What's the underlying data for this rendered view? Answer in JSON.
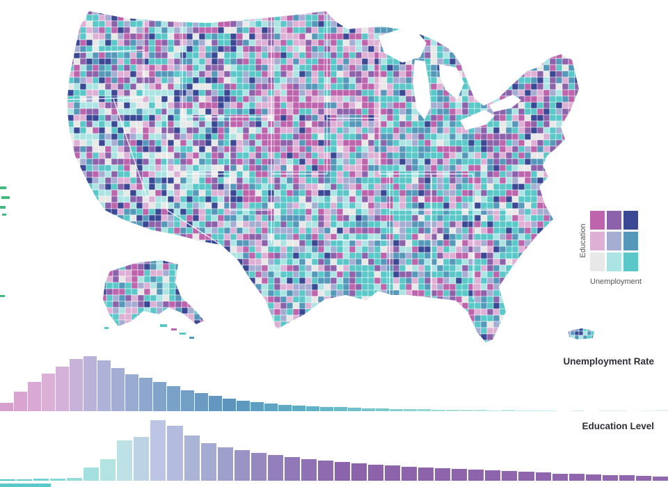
{
  "page": {
    "background": "#ffffff",
    "description": "Linked bivariate choropleth dashboard: U.S. counties by Education and Unemployment with two histograms"
  },
  "map": {
    "title": "U.S. counties bivariate choropleth (Education x Unemployment)",
    "palette": {
      "grid": [
        [
          "#be64ac",
          "#8c62aa",
          "#3b4994"
        ],
        [
          "#dfb0d6",
          "#a5add3",
          "#5698b9"
        ],
        [
          "#e8e8e8",
          "#ace4e4",
          "#5ac8c8"
        ]
      ],
      "county_border": "#ffffff",
      "water": "#ffffff",
      "hawaii_accent": "#43b97f"
    },
    "legend": {
      "y_label": "Education",
      "x_label": "Unemployment"
    }
  },
  "chart_data": [
    {
      "type": "bar",
      "title": "Unemployment Rate",
      "note": "histogram of county unemployment rates; no axis tick labels shown; colors ramp pink -> lavender -> blue -> teal -> pale",
      "values": [
        12,
        28,
        43,
        55,
        65,
        76,
        80,
        74,
        63,
        54,
        49,
        43,
        36,
        30,
        26,
        22,
        18,
        15,
        13,
        11,
        9,
        8,
        7,
        6,
        6,
        5,
        4,
        4,
        3,
        3,
        3,
        2,
        2,
        2,
        2,
        1,
        2,
        1,
        1,
        1,
        0,
        1,
        0,
        1,
        1,
        0,
        1,
        2
      ],
      "ylim": [
        0,
        80
      ],
      "color_stops": [
        {
          "t": 0,
          "c": "#d79fcb"
        },
        {
          "t": 0.07,
          "c": "#dcb0d8"
        },
        {
          "t": 0.14,
          "c": "#b4b3da"
        },
        {
          "t": 0.24,
          "c": "#7fa3c9"
        },
        {
          "t": 0.34,
          "c": "#5d94bd"
        },
        {
          "t": 0.46,
          "c": "#5fb0c6"
        },
        {
          "t": 0.58,
          "c": "#7ecbcd"
        },
        {
          "t": 0.72,
          "c": "#b5e6e4"
        },
        {
          "t": 1,
          "c": "#e2f3f1"
        }
      ]
    },
    {
      "type": "bar",
      "title": "Education Level",
      "note": "histogram of county education levels; no axis tick labels shown; colors ramp teal -> pale teal -> lavender -> purple",
      "values": [
        2,
        2,
        3,
        3,
        4,
        18,
        30,
        55,
        60,
        83,
        75,
        62,
        52,
        46,
        42,
        38,
        35,
        32,
        30,
        28,
        26,
        24,
        22,
        21,
        19,
        18,
        17,
        16,
        15,
        14,
        13,
        12,
        11,
        10,
        10,
        9,
        8,
        8,
        7,
        6
      ],
      "ylim": [
        0,
        83
      ],
      "color_stops": [
        {
          "t": 0,
          "c": "#4fc5c5"
        },
        {
          "t": 0.1,
          "c": "#93dcda"
        },
        {
          "t": 0.17,
          "c": "#bce7e5"
        },
        {
          "t": 0.23,
          "c": "#bcc5e4"
        },
        {
          "t": 0.3,
          "c": "#a5add3"
        },
        {
          "t": 0.4,
          "c": "#9382bd"
        },
        {
          "t": 0.52,
          "c": "#8c62aa"
        },
        {
          "t": 1,
          "c": "#9168ae"
        }
      ]
    }
  ],
  "cropped_bottom_bar": {
    "color": "#5ac8c8"
  }
}
